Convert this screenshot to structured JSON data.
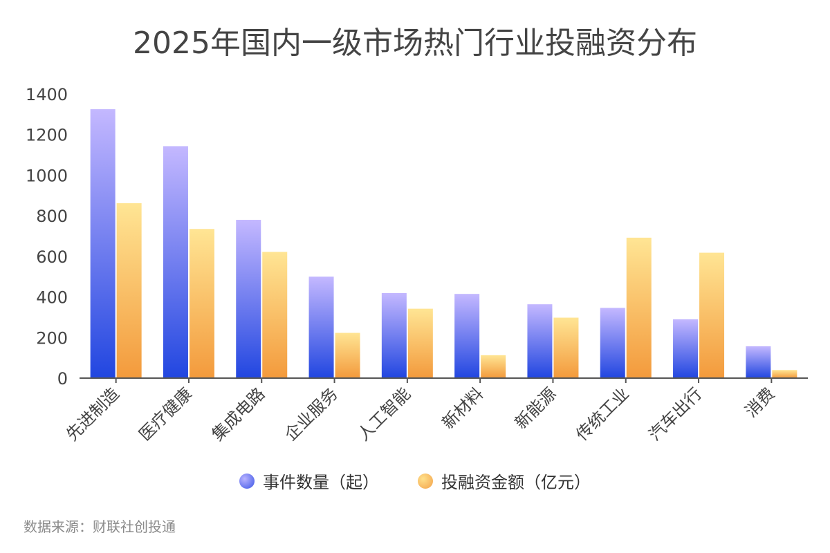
{
  "chart_data": {
    "type": "bar",
    "title": "2025年国内一级市场热门行业投融资分布",
    "categories": [
      "先进制造",
      "医疗健康",
      "集成电路",
      "企业服务",
      "人工智能",
      "新材料",
      "新能源",
      "传统工业",
      "汽车出行",
      "消费"
    ],
    "series": [
      {
        "name": "事件数量（起）",
        "values": [
          1325,
          1143,
          780,
          500,
          419,
          415,
          364,
          346,
          290,
          157
        ]
      },
      {
        "name": "投融资金额（亿元）",
        "values": [
          862,
          735,
          622,
          223,
          342,
          113,
          298,
          692,
          618,
          40
        ]
      }
    ],
    "yticks": [
      0,
      200,
      400,
      600,
      800,
      1000,
      1200,
      1400
    ],
    "ylim": [
      0,
      1400
    ],
    "grid": false,
    "legend_position": "bottom"
  },
  "source_text": "数据来源：财联社创投通",
  "colors": {
    "events_top": "#c4b8ff",
    "events_bottom": "#2146e0",
    "amount_top": "#ffe594",
    "amount_bottom": "#f39a3c",
    "axis": "#555555"
  }
}
